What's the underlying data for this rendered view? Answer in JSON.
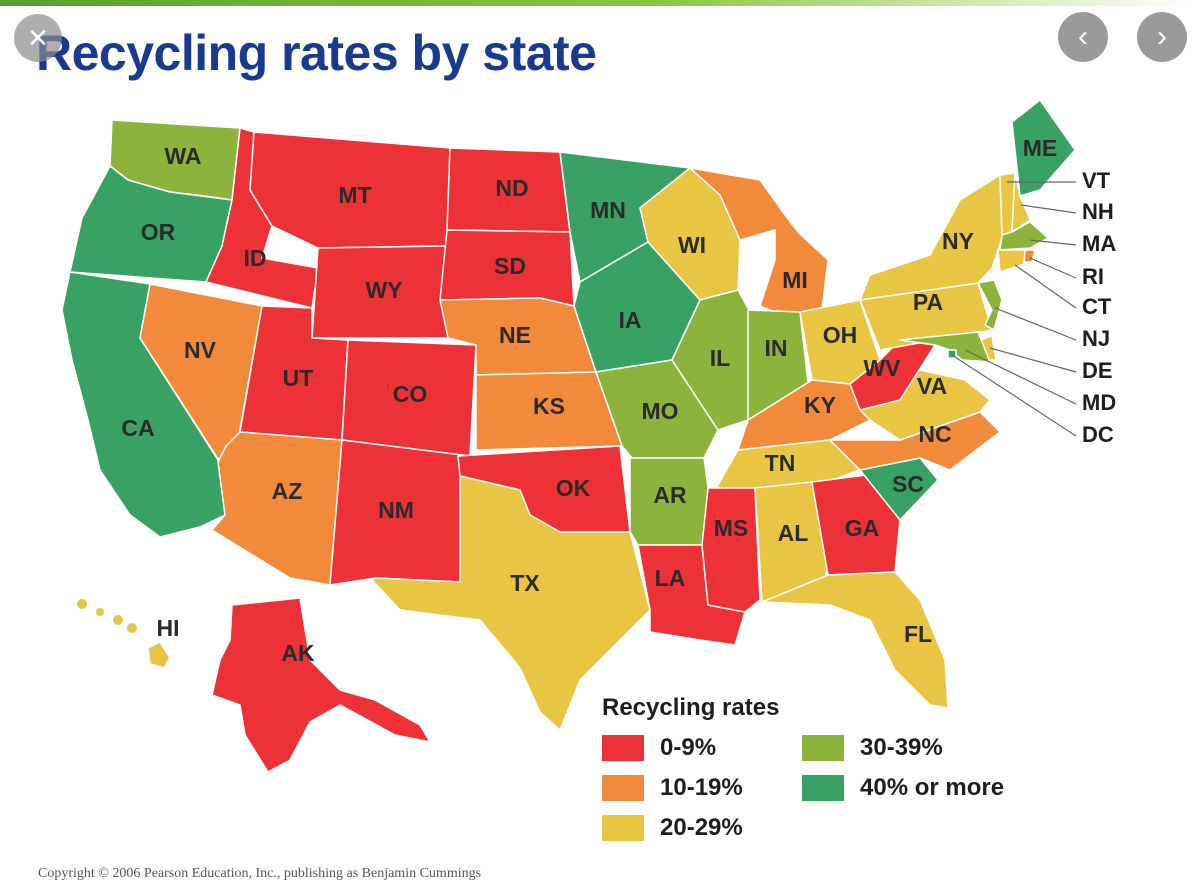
{
  "title": "Recycling rates by state",
  "copyright": "Copyright © 2006 Pearson Education, Inc., publishing as Benjamin Cummings",
  "icons": {
    "close": "close-icon",
    "prev": "chevron-left-icon",
    "next": "chevron-right-icon"
  },
  "colors": {
    "0-9": "#ec3237",
    "10-19": "#f28a3b",
    "20-29": "#e9c544",
    "30-39": "#8cb43c",
    "40+": "#38a265"
  },
  "legend": {
    "title": "Recycling rates",
    "items": [
      {
        "key": "0-9",
        "label": "0-9%",
        "color": "#ec3237"
      },
      {
        "key": "10-19",
        "label": "10-19%",
        "color": "#f28a3b"
      },
      {
        "key": "20-29",
        "label": "20-29%",
        "color": "#e9c544"
      },
      {
        "key": "30-39",
        "label": "30-39%",
        "color": "#8cb43c"
      },
      {
        "key": "40+",
        "label": "40% or more",
        "color": "#38a265"
      }
    ]
  },
  "states": [
    {
      "abbr": "WA",
      "rate": "30-39"
    },
    {
      "abbr": "OR",
      "rate": "40+"
    },
    {
      "abbr": "CA",
      "rate": "40+"
    },
    {
      "abbr": "ID",
      "rate": "0-9"
    },
    {
      "abbr": "NV",
      "rate": "10-19"
    },
    {
      "abbr": "MT",
      "rate": "0-9"
    },
    {
      "abbr": "WY",
      "rate": "0-9"
    },
    {
      "abbr": "UT",
      "rate": "0-9"
    },
    {
      "abbr": "AZ",
      "rate": "10-19"
    },
    {
      "abbr": "CO",
      "rate": "0-9"
    },
    {
      "abbr": "NM",
      "rate": "0-9"
    },
    {
      "abbr": "ND",
      "rate": "0-9"
    },
    {
      "abbr": "SD",
      "rate": "0-9"
    },
    {
      "abbr": "NE",
      "rate": "10-19"
    },
    {
      "abbr": "KS",
      "rate": "10-19"
    },
    {
      "abbr": "OK",
      "rate": "0-9"
    },
    {
      "abbr": "TX",
      "rate": "20-29"
    },
    {
      "abbr": "MN",
      "rate": "40+"
    },
    {
      "abbr": "IA",
      "rate": "40+"
    },
    {
      "abbr": "MO",
      "rate": "30-39"
    },
    {
      "abbr": "AR",
      "rate": "30-39"
    },
    {
      "abbr": "LA",
      "rate": "0-9"
    },
    {
      "abbr": "WI",
      "rate": "20-29"
    },
    {
      "abbr": "IL",
      "rate": "30-39"
    },
    {
      "abbr": "MI",
      "rate": "10-19"
    },
    {
      "abbr": "IN",
      "rate": "30-39"
    },
    {
      "abbr": "OH",
      "rate": "20-29"
    },
    {
      "abbr": "KY",
      "rate": "10-19"
    },
    {
      "abbr": "TN",
      "rate": "20-29"
    },
    {
      "abbr": "MS",
      "rate": "0-9"
    },
    {
      "abbr": "AL",
      "rate": "20-29"
    },
    {
      "abbr": "GA",
      "rate": "0-9"
    },
    {
      "abbr": "FL",
      "rate": "20-29"
    },
    {
      "abbr": "SC",
      "rate": "40+"
    },
    {
      "abbr": "NC",
      "rate": "10-19"
    },
    {
      "abbr": "VA",
      "rate": "20-29"
    },
    {
      "abbr": "WV",
      "rate": "0-9"
    },
    {
      "abbr": "PA",
      "rate": "20-29"
    },
    {
      "abbr": "NY",
      "rate": "20-29"
    },
    {
      "abbr": "ME",
      "rate": "40+"
    },
    {
      "abbr": "VT",
      "rate": "20-29"
    },
    {
      "abbr": "NH",
      "rate": "20-29"
    },
    {
      "abbr": "MA",
      "rate": "30-39"
    },
    {
      "abbr": "RI",
      "rate": "10-19"
    },
    {
      "abbr": "CT",
      "rate": "20-29"
    },
    {
      "abbr": "NJ",
      "rate": "30-39"
    },
    {
      "abbr": "DE",
      "rate": "20-29"
    },
    {
      "abbr": "MD",
      "rate": "30-39"
    },
    {
      "abbr": "DC",
      "rate": "40+"
    },
    {
      "abbr": "AK",
      "rate": "0-9"
    },
    {
      "abbr": "HI",
      "rate": "20-29"
    }
  ]
}
